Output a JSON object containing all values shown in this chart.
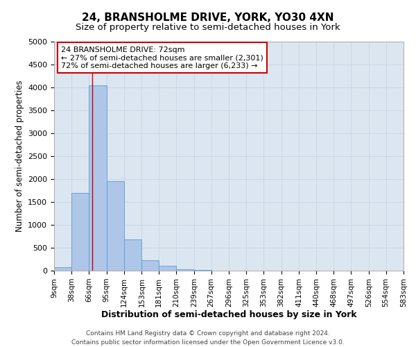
{
  "title": "24, BRANSHOLME DRIVE, YORK, YO30 4XN",
  "subtitle": "Size of property relative to semi-detached houses in York",
  "xlabel": "Distribution of semi-detached houses by size in York",
  "ylabel": "Number of semi-detached properties",
  "footer_line1": "Contains HM Land Registry data © Crown copyright and database right 2024.",
  "footer_line2": "Contains public sector information licensed under the Open Government Licence v3.0.",
  "annotation_line1": "24 BRANSHOLME DRIVE: 72sqm",
  "annotation_line2": "← 27% of semi-detached houses are smaller (2,301)",
  "annotation_line3": "72% of semi-detached houses are larger (6,233) →",
  "bin_edges": [
    9,
    38,
    66,
    95,
    124,
    153,
    181,
    210,
    239,
    267,
    296,
    325,
    353,
    382,
    411,
    440,
    468,
    497,
    526,
    554,
    583
  ],
  "bin_labels": [
    "9sqm",
    "38sqm",
    "66sqm",
    "95sqm",
    "124sqm",
    "153sqm",
    "181sqm",
    "210sqm",
    "239sqm",
    "267sqm",
    "296sqm",
    "325sqm",
    "353sqm",
    "382sqm",
    "411sqm",
    "440sqm",
    "468sqm",
    "497sqm",
    "526sqm",
    "554sqm",
    "583sqm"
  ],
  "bar_heights": [
    75,
    1700,
    4050,
    1950,
    680,
    230,
    100,
    30,
    10,
    5,
    3,
    2,
    1,
    1,
    0,
    0,
    0,
    0,
    0,
    0
  ],
  "bar_color": "#aec6e8",
  "bar_edge_color": "#5b9bd5",
  "red_line_x": 72,
  "ylim": [
    0,
    5000
  ],
  "yticks": [
    0,
    500,
    1000,
    1500,
    2000,
    2500,
    3000,
    3500,
    4000,
    4500,
    5000
  ],
  "grid_color": "#c8d4e8",
  "annotation_box_color": "#ffffff",
  "annotation_box_edge": "#cc0000",
  "red_line_color": "#cc0000",
  "bg_color": "#dce6f0"
}
